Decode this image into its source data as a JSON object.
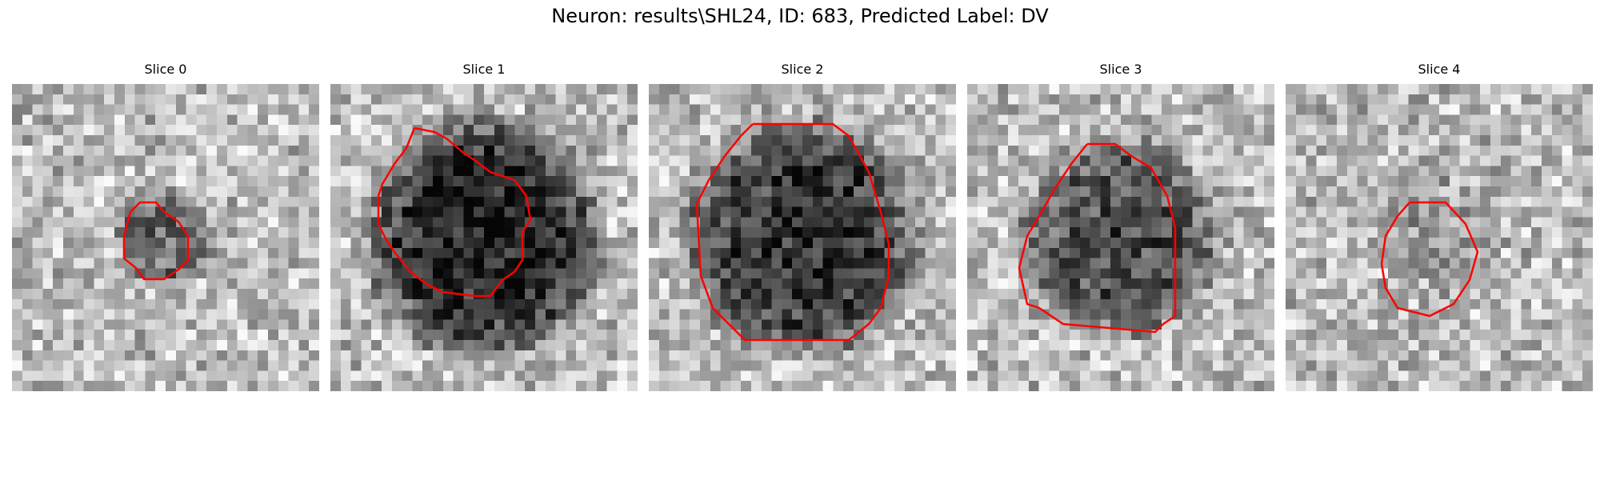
{
  "figure": {
    "title": "Neuron: results\\SHL24, ID: 683, Predicted Label: DV"
  },
  "panels": [
    {
      "title": "Slice 0",
      "brightness": "mid",
      "blob_darkness": 0.35,
      "blob_radius_frac": 0.17,
      "contour_color": "#ff0000"
    },
    {
      "title": "Slice 1",
      "brightness": "mid",
      "blob_darkness": 0.62,
      "blob_radius_frac": 0.4,
      "contour_color": "#ff0000"
    },
    {
      "title": "Slice 2",
      "brightness": "mid",
      "blob_darkness": 0.55,
      "blob_radius_frac": 0.4,
      "contour_color": "#ff0000"
    },
    {
      "title": "Slice 3",
      "brightness": "mid",
      "blob_darkness": 0.45,
      "blob_radius_frac": 0.34,
      "contour_color": "#ff0000"
    },
    {
      "title": "Slice 4",
      "brightness": "mid",
      "blob_darkness": 0.12,
      "blob_radius_frac": 0.2,
      "contour_color": "#ff0000"
    }
  ],
  "colors": {
    "background": "#ffffff",
    "contour": "#ff0000"
  }
}
